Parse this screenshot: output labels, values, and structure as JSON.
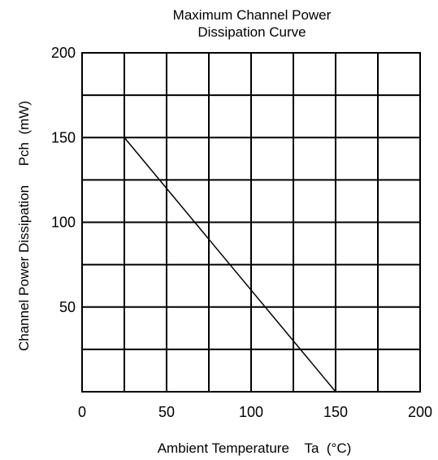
{
  "chart_data": {
    "type": "line",
    "title_lines": [
      "Maximum Channel Power",
      "Dissipation Curve"
    ],
    "xlabel": "Ambient Temperature    Ta  (°C)",
    "ylabel": "Channel Power Dissipation     Pch  (mW)",
    "xlim": [
      0,
      200
    ],
    "ylim": [
      0,
      200
    ],
    "x_ticks": [
      "0",
      "50",
      "100",
      "150",
      "200"
    ],
    "y_ticks": [
      "50",
      "100",
      "150",
      "200"
    ],
    "grid": true,
    "series": [
      {
        "x": [
          25,
          150
        ],
        "y": [
          150,
          0
        ]
      }
    ]
  }
}
